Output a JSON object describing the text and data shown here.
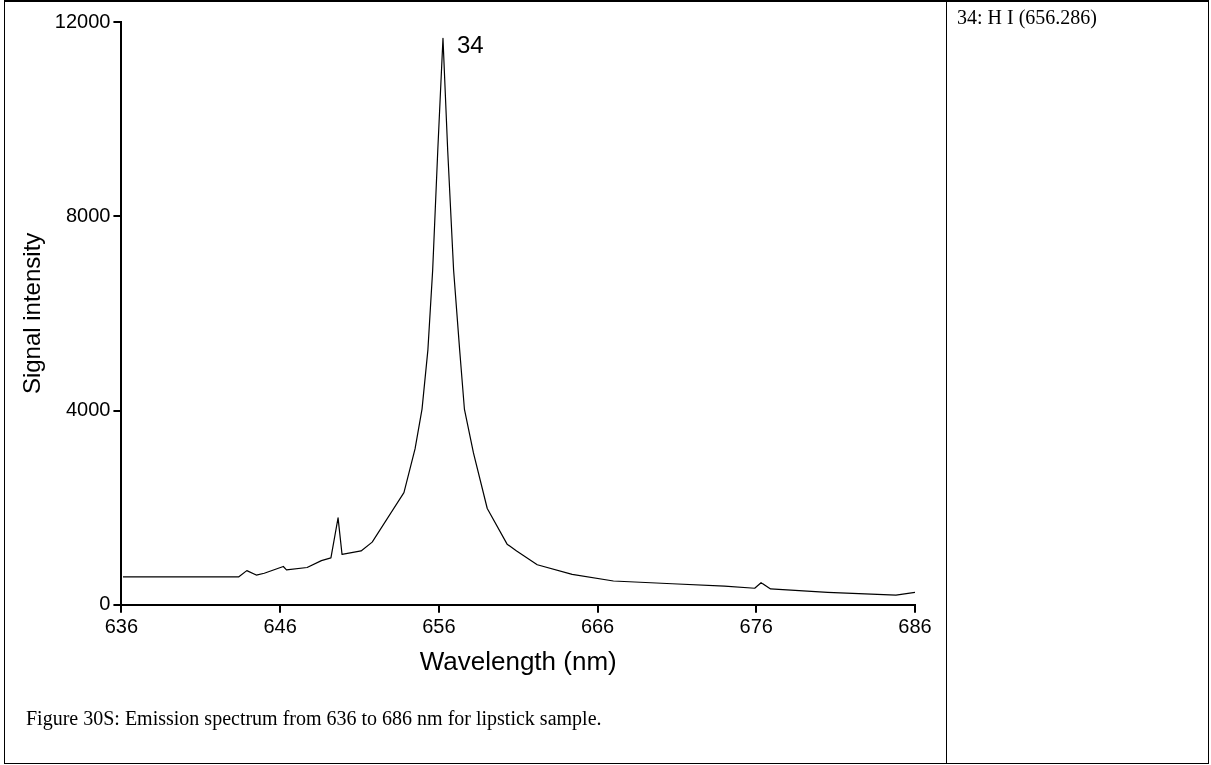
{
  "chart_data": {
    "type": "line",
    "xlabel": "Wavelength (nm)",
    "ylabel": "Signal intensity",
    "x": [
      636.1,
      639.9,
      643.4,
      643.9,
      644.5,
      645.0,
      646.2,
      646.4,
      647.7,
      648.6,
      649.2,
      649.65,
      649.9,
      651.1,
      651.8,
      653.8,
      654.5,
      654.94,
      655.31,
      655.61,
      655.93,
      656.26,
      656.56,
      656.93,
      657.31,
      657.61,
      658.18,
      659.05,
      660.3,
      660.9,
      662.2,
      664.4,
      667.0,
      670.7,
      674.0,
      675.9,
      676.3,
      676.9,
      680.5,
      684.8,
      686.0
    ],
    "series": [
      {
        "color": "#000000",
        "values": [
          576,
          576,
          576,
          704,
          612,
          650,
          789,
          718,
          768,
          910,
          966,
          1790,
          1038,
          1109,
          1290,
          2311,
          3209,
          4030,
          5250,
          6887,
          9337,
          11665,
          9337,
          6887,
          5250,
          4030,
          3128,
          1983,
          1249,
          1109,
          825,
          625,
          490,
          433,
          384,
          341,
          455,
          327,
          256,
          199,
          256
        ]
      }
    ],
    "xlim": [
      636,
      686
    ],
    "xticks": [
      636,
      646,
      656,
      666,
      676,
      686
    ],
    "ylim": [
      0,
      12000
    ],
    "yticks": [
      0,
      4000,
      8000,
      12000
    ],
    "grid": false,
    "legend": false,
    "marker": "none",
    "line_style": "solid",
    "annotations": [
      {
        "text": "34",
        "x": 656.26,
        "y": 11665
      },
      "Figure 30S: Emission spectrum from 636 to 686 nm for lipstick sample.",
      "34: H I (656.286)"
    ]
  }
}
